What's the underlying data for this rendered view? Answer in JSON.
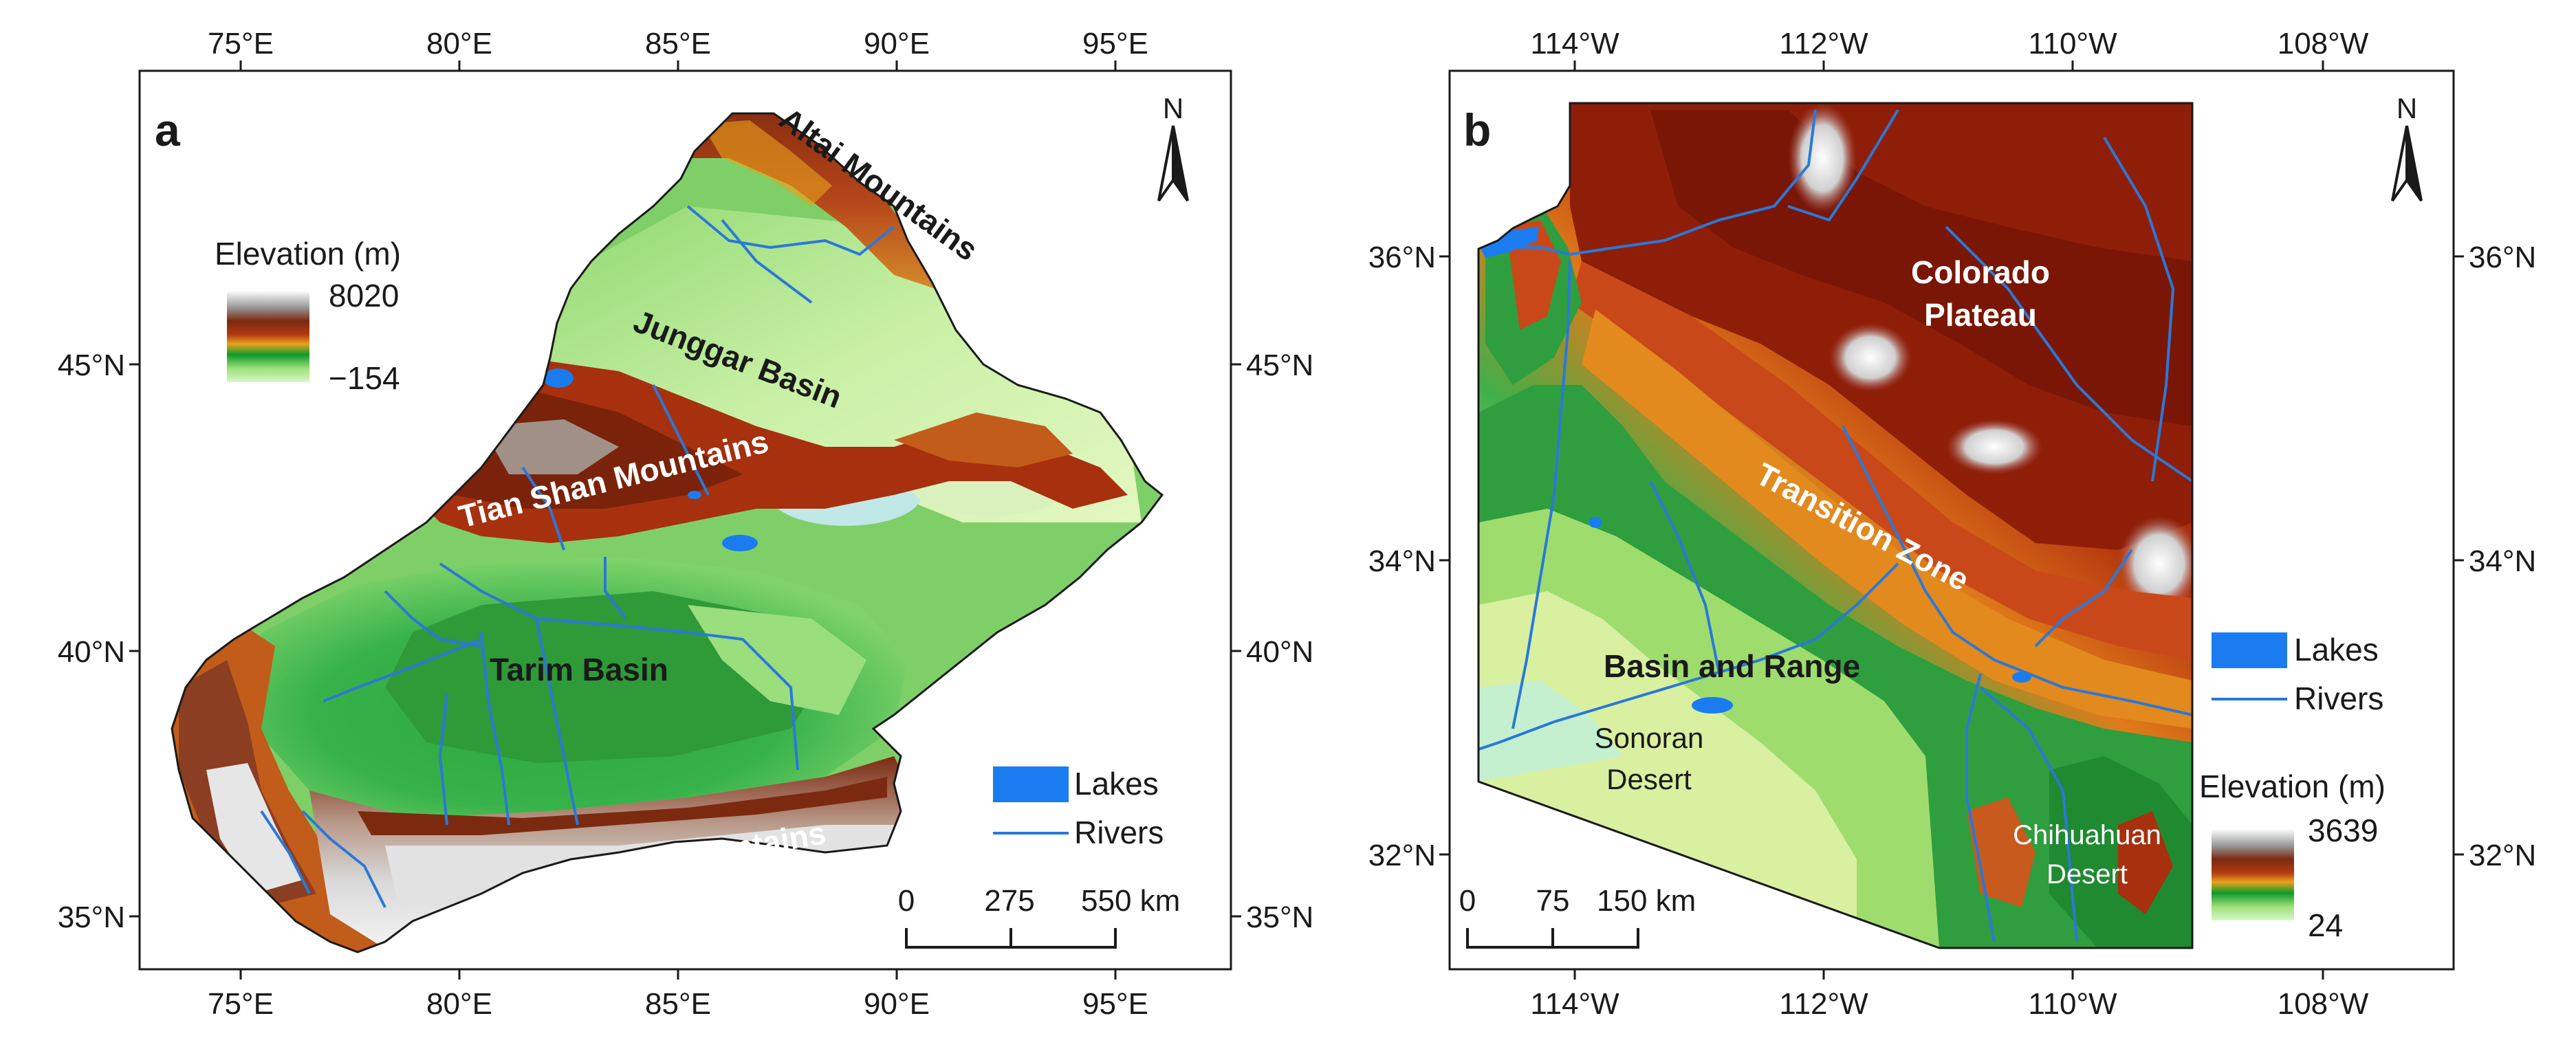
{
  "panel_a": {
    "letter": "a",
    "top_ticks": [
      "75°E",
      "80°E",
      "85°E",
      "90°E",
      "95°E"
    ],
    "bottom_ticks": [
      "75°E",
      "80°E",
      "85°E",
      "90°E",
      "95°E"
    ],
    "left_ticks": [
      "45°N",
      "40°N",
      "35°N"
    ],
    "right_ticks": [
      "45°N",
      "40°N",
      "35°N"
    ],
    "regions": {
      "altai": "Altai Mountains",
      "junggar": "Junggar Basin",
      "tianshan": "Tian Shan Mountains",
      "tarim": "Tarim Basin",
      "kunlun": "Kunlun Mountains"
    },
    "elevation_legend": {
      "title": "Elevation (m)",
      "max": "8020",
      "min": "−154"
    },
    "legend": {
      "lakes": "Lakes",
      "rivers": "Rivers"
    },
    "scale_bar": {
      "ticks": [
        "0",
        "275",
        "550 km"
      ]
    },
    "north": "N"
  },
  "panel_b": {
    "letter": "b",
    "top_ticks": [
      "114°W",
      "112°W",
      "110°W",
      "108°W"
    ],
    "bottom_ticks": [
      "114°W",
      "112°W",
      "110°W",
      "108°W"
    ],
    "left_ticks": [
      "36°N",
      "34°N",
      "32°N"
    ],
    "right_ticks": [
      "36°N",
      "34°N",
      "32°N"
    ],
    "regions": {
      "colorado_1": "Colorado",
      "colorado_2": "Plateau",
      "transition": "Transition Zone",
      "basin_range": "Basin and Range",
      "sonoran_1": "Sonoran",
      "sonoran_2": "Desert",
      "chihuahuan_1": "Chihuahuan",
      "chihuahuan_2": "Desert"
    },
    "elevation_legend": {
      "title": "Elevation (m)",
      "max": "3639",
      "min": "24"
    },
    "legend": {
      "lakes": "Lakes",
      "rivers": "Rivers"
    },
    "scale_bar": {
      "ticks": [
        "0",
        "75",
        "150 km"
      ]
    },
    "north": "N"
  },
  "colors": {
    "lake": "#1a7cf0",
    "river": "#2b78d8",
    "ramp": [
      "#ffffff",
      "#9a9a9a",
      "#7b2a10",
      "#b33a12",
      "#e9a21a",
      "#0f9a2c",
      "#9fe07a",
      "#d6f7c8"
    ]
  }
}
